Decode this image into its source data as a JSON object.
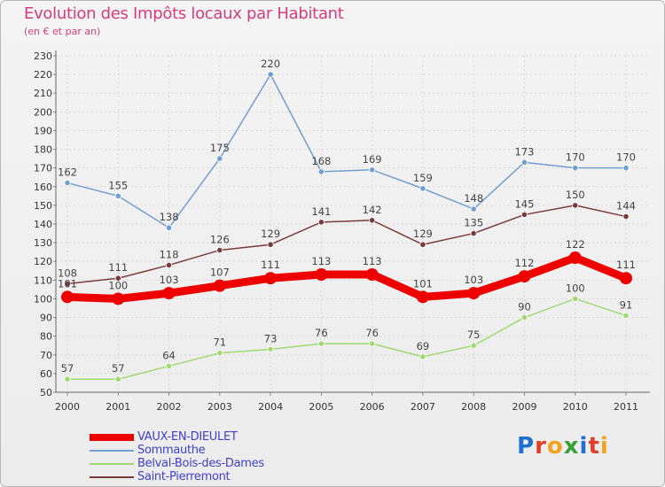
{
  "header": {
    "title": "Evolution des Impôts locaux par Habitant",
    "subtitle": "(en € et par an)"
  },
  "logo": {
    "letters": [
      "P",
      "r",
      "o",
      "x",
      "i",
      "t",
      "i"
    ],
    "colors": [
      "#1e6fd0",
      "#e23f2a",
      "#f2a31b",
      "#3aa03a",
      "#1e6fd0",
      "#e23f2a",
      "#f2a31b"
    ]
  },
  "chart_data": {
    "type": "line",
    "title": "Evolution des Impôts locaux par Habitant",
    "subtitle": "(en € et par an)",
    "xlabel": "",
    "ylabel": "",
    "ylim": [
      50,
      230
    ],
    "yticks": [
      50,
      60,
      70,
      80,
      90,
      100,
      110,
      120,
      130,
      140,
      150,
      160,
      170,
      180,
      190,
      200,
      210,
      220,
      230
    ],
    "categories": [
      "2000",
      "2001",
      "2002",
      "2003",
      "2004",
      "2005",
      "2006",
      "2007",
      "2008",
      "2009",
      "2010",
      "2011"
    ],
    "grid": true,
    "legend": "bottom-left",
    "series": [
      {
        "name": "VAUX-EN-DIEULET",
        "color": "#ee0000",
        "values": [
          101,
          100,
          103,
          107,
          111,
          113,
          113,
          101,
          103,
          112,
          122,
          111
        ]
      },
      {
        "name": "Sommauthe",
        "color": "#6f9fd0",
        "values": [
          162,
          155,
          138,
          175,
          220,
          168,
          169,
          159,
          148,
          173,
          170,
          170
        ]
      },
      {
        "name": "Belval-Bois-des-Dames",
        "color": "#9fd870",
        "values": [
          57,
          57,
          64,
          71,
          73,
          76,
          76,
          69,
          75,
          90,
          100,
          91
        ]
      },
      {
        "name": "Saint-Pierremont",
        "color": "#7a3a3a",
        "values": [
          108,
          111,
          118,
          126,
          129,
          141,
          142,
          129,
          135,
          145,
          150,
          144
        ]
      }
    ]
  }
}
